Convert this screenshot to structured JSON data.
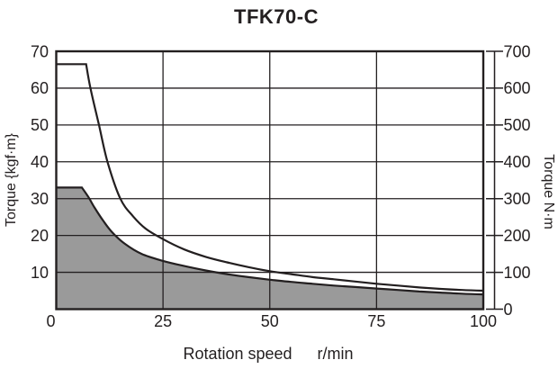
{
  "chart_data": {
    "type": "line",
    "title": "TFK70-C",
    "xlabel": "Rotation speed",
    "xlabel_unit": "r/min",
    "ylabel_left": "Torque {kgf·m}",
    "ylabel_right": "Torque N·m",
    "xlim": [
      0,
      100
    ],
    "ylim_left": [
      0,
      70
    ],
    "ylim_right": [
      0,
      700
    ],
    "grid": true,
    "x_ticks": [
      0,
      25,
      50,
      75,
      100
    ],
    "y_left_ticks": [
      70,
      60,
      50,
      40,
      30,
      20,
      10
    ],
    "y_right_ticks": [
      700,
      600,
      500,
      400,
      300,
      200,
      100,
      0
    ],
    "series": [
      {
        "name": "max-torque-curve",
        "fill": false,
        "points": [
          [
            0,
            66.5
          ],
          [
            7,
            66.5
          ],
          [
            8,
            60
          ],
          [
            10,
            50
          ],
          [
            12,
            40
          ],
          [
            15,
            30
          ],
          [
            18,
            25.2
          ],
          [
            21,
            21.8
          ],
          [
            25,
            19
          ],
          [
            30,
            16.2
          ],
          [
            35,
            14.2
          ],
          [
            40,
            12.7
          ],
          [
            45,
            11.4
          ],
          [
            50,
            10.3
          ],
          [
            55,
            9.5
          ],
          [
            60,
            8.7
          ],
          [
            65,
            8.1
          ],
          [
            70,
            7.5
          ],
          [
            75,
            6.9
          ],
          [
            80,
            6.4
          ],
          [
            85,
            5.9
          ],
          [
            90,
            5.5
          ],
          [
            95,
            5.2
          ],
          [
            100,
            5.0
          ]
        ]
      },
      {
        "name": "continuous-torque-curve",
        "fill": true,
        "points": [
          [
            0,
            33
          ],
          [
            6,
            33
          ],
          [
            7.5,
            30.5
          ],
          [
            9,
            27.5
          ],
          [
            11,
            24
          ],
          [
            13,
            21
          ],
          [
            16,
            17.8
          ],
          [
            20,
            15
          ],
          [
            25,
            13.1
          ],
          [
            30,
            11.7
          ],
          [
            35,
            10.5
          ],
          [
            40,
            9.5
          ],
          [
            45,
            8.7
          ],
          [
            50,
            8.0
          ],
          [
            55,
            7.4
          ],
          [
            60,
            6.9
          ],
          [
            65,
            6.4
          ],
          [
            70,
            6.0
          ],
          [
            75,
            5.6
          ],
          [
            80,
            5.2
          ],
          [
            85,
            4.8
          ],
          [
            90,
            4.5
          ],
          [
            95,
            4.2
          ],
          [
            100,
            4.0
          ]
        ]
      }
    ],
    "colors": {
      "curve": "#231f20",
      "fill": "#9a9a9a",
      "grid": "#231f20",
      "background": "#ffffff"
    }
  }
}
